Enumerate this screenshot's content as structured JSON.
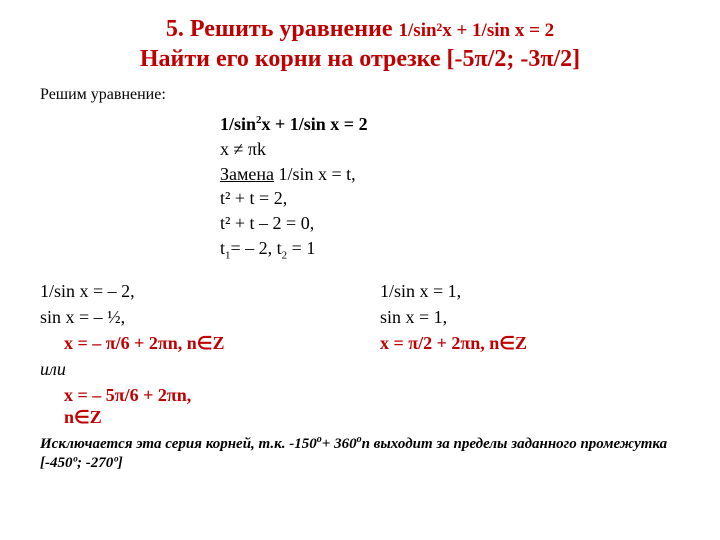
{
  "title": {
    "line1_prefix": "5. Решить уравнение ",
    "line1_eq": "1/sin²x + 1/sin x = 2",
    "line2": "Найти его корни на отрезке [-5π/2; -3π/2]"
  },
  "lead": "Решим уравнение:",
  "derivation": {
    "eq_main_pre": "1/sin",
    "eq_main_sup": "2",
    "eq_main_post": "x + 1/sin x = 2",
    "restriction": "x ≠ πk",
    "substitution_label": "Замена",
    "substitution_expr": " 1/sin x = t,",
    "step1": "t² + t = 2,",
    "step2": "t² + t – 2 = 0,",
    "roots_pre": "t",
    "roots_sub1": "1",
    "roots_mid": "= – 2, t",
    "roots_sub2": "2",
    "roots_post": " = 1"
  },
  "left": {
    "l1": "1/sin x = – 2,",
    "l2": "sin x = – ½,",
    "ans1": "x = – π/6 + 2πn, n∈Z",
    "or": "или",
    "ans2a": "x = – 5π/6 + 2πn,",
    "ans2b": "n∈Z"
  },
  "right": {
    "r1": "1/sin x = 1,",
    "r2": "sin x = 1,",
    "ans": "x = π/2 + 2πn, n∈Z"
  },
  "footnote": {
    "text1": "Исключается эта серия корней, т.к. -150",
    "deg": "о",
    "text2": "+ 360",
    "text3": "n выходит за пределы заданного промежутка ",
    "range": "[-450º; -270º]"
  },
  "colors": {
    "accent": "#c00000",
    "text": "#000000",
    "background": "#ffffff"
  }
}
